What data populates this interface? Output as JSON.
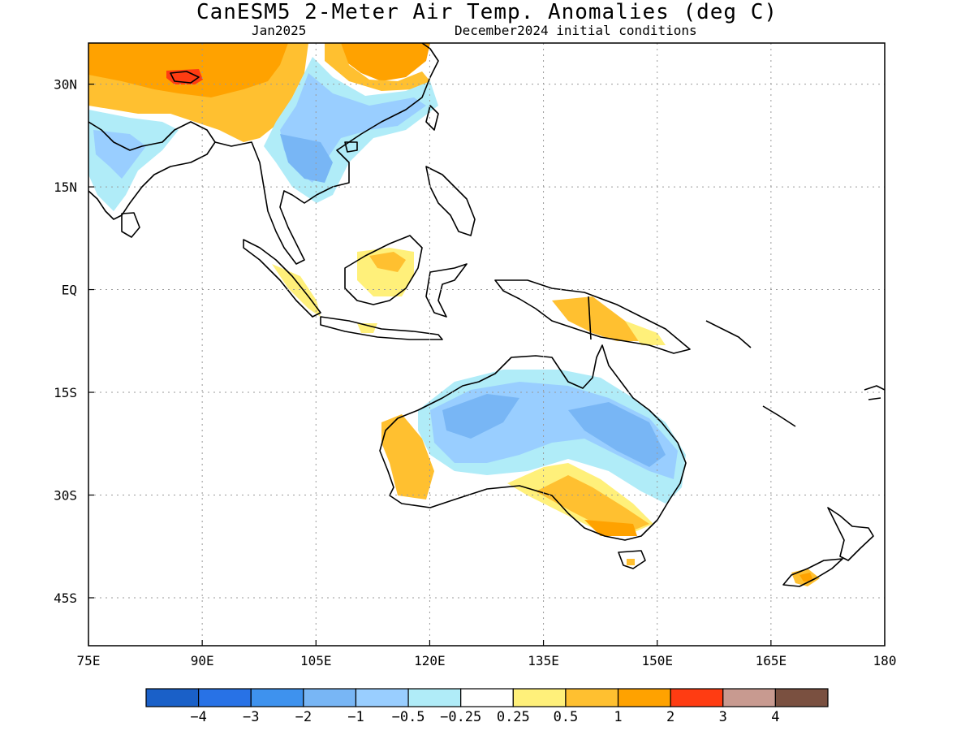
{
  "header": {
    "title": "CanESM5 2-Meter Air Temp. Anomalies (deg C)",
    "valid_month": "Jan2025",
    "init_conditions": "December2024 initial conditions"
  },
  "map": {
    "lon_range": [
      75,
      180
    ],
    "lat_range": [
      -52,
      36
    ],
    "lon_ticks": [
      {
        "value": 75,
        "label": "75E"
      },
      {
        "value": 90,
        "label": "90E"
      },
      {
        "value": 105,
        "label": "105E"
      },
      {
        "value": 120,
        "label": "120E"
      },
      {
        "value": 135,
        "label": "135E"
      },
      {
        "value": 150,
        "label": "150E"
      },
      {
        "value": 165,
        "label": "165E"
      },
      {
        "value": 180,
        "label": "180"
      }
    ],
    "lat_ticks": [
      {
        "value": 30,
        "label": "30N"
      },
      {
        "value": 15,
        "label": "15N"
      },
      {
        "value": 0,
        "label": "EQ"
      },
      {
        "value": -15,
        "label": "15S"
      },
      {
        "value": -30,
        "label": "30S"
      },
      {
        "value": -45,
        "label": "45S"
      }
    ],
    "gridlines": true
  },
  "colorbar": {
    "colors": [
      "#1a60c8",
      "#2872e6",
      "#3e92ee",
      "#78b6f5",
      "#99ceff",
      "#b0ecf8",
      "#ffffff",
      "#fff07a",
      "#ffc030",
      "#ffa200",
      "#ff3c12",
      "#c89a90",
      "#7a5040"
    ],
    "labels": [
      "-4",
      "-3",
      "-2",
      "-1",
      "-0.5",
      "-0.25",
      "0.25",
      "0.5",
      "1",
      "2",
      "3",
      "4"
    ]
  }
}
